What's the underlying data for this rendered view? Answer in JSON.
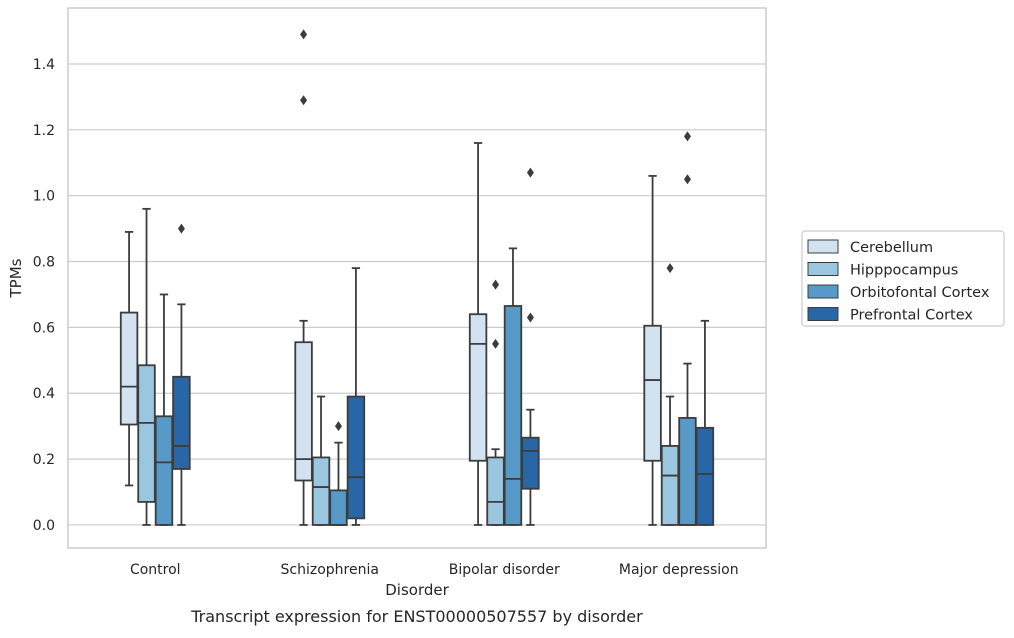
{
  "caption": "Transcript expression for ENST00000507557 by disorder",
  "chart_data": {
    "type": "box",
    "xlabel": "Disorder",
    "ylabel": "TPMs",
    "ylim": [
      -0.07,
      1.57
    ],
    "yticks": [
      0.0,
      0.2,
      0.4,
      0.6,
      0.8,
      1.0,
      1.2,
      1.4
    ],
    "ytick_labels": [
      "0.0",
      "0.2",
      "0.4",
      "0.6",
      "0.8",
      "1.0",
      "1.2",
      "1.4"
    ],
    "grid": "horizontal",
    "legend_position": "right",
    "categories": [
      "Control",
      "Schizophrenia",
      "Bipolar disorder",
      "Major depression"
    ],
    "series": [
      {
        "name": "Cerebellum",
        "color": "#d2e2f1",
        "boxes": [
          {
            "whisker_low": 0.12,
            "q1": 0.305,
            "median": 0.42,
            "q3": 0.645,
            "whisker_high": 0.89,
            "outliers": []
          },
          {
            "whisker_low": 0.0,
            "q1": 0.135,
            "median": 0.2,
            "q3": 0.555,
            "whisker_high": 0.62,
            "outliers": [
              1.29,
              1.49
            ]
          },
          {
            "whisker_low": 0.0,
            "q1": 0.195,
            "median": 0.55,
            "q3": 0.64,
            "whisker_high": 1.16,
            "outliers": []
          },
          {
            "whisker_low": 0.0,
            "q1": 0.195,
            "median": 0.44,
            "q3": 0.605,
            "whisker_high": 1.06,
            "outliers": []
          }
        ]
      },
      {
        "name": "Hipppocampus",
        "color": "#9ac6df",
        "boxes": [
          {
            "whisker_low": 0.0,
            "q1": 0.07,
            "median": 0.31,
            "q3": 0.485,
            "whisker_high": 0.96,
            "outliers": []
          },
          {
            "whisker_low": 0.0,
            "q1": 0.0,
            "median": 0.115,
            "q3": 0.205,
            "whisker_high": 0.39,
            "outliers": []
          },
          {
            "whisker_low": 0.0,
            "q1": 0.0,
            "median": 0.07,
            "q3": 0.205,
            "whisker_high": 0.23,
            "outliers": [
              0.55,
              0.73
            ]
          },
          {
            "whisker_low": 0.0,
            "q1": 0.0,
            "median": 0.15,
            "q3": 0.24,
            "whisker_high": 0.39,
            "outliers": [
              0.78
            ]
          }
        ]
      },
      {
        "name": "Orbitofontal Cortex",
        "color": "#5799c7",
        "boxes": [
          {
            "whisker_low": 0.0,
            "q1": 0.0,
            "median": 0.19,
            "q3": 0.33,
            "whisker_high": 0.7,
            "outliers": []
          },
          {
            "whisker_low": 0.0,
            "q1": 0.0,
            "median": 0.0,
            "q3": 0.105,
            "whisker_high": 0.25,
            "outliers": [
              0.3
            ]
          },
          {
            "whisker_low": 0.0,
            "q1": 0.0,
            "median": 0.14,
            "q3": 0.665,
            "whisker_high": 0.84,
            "outliers": []
          },
          {
            "whisker_low": 0.0,
            "q1": 0.0,
            "median": 0.0,
            "q3": 0.325,
            "whisker_high": 0.49,
            "outliers": [
              1.05,
              1.18
            ]
          }
        ]
      },
      {
        "name": "Prefrontal Cortex",
        "color": "#2866a5",
        "boxes": [
          {
            "whisker_low": 0.0,
            "q1": 0.17,
            "median": 0.24,
            "q3": 0.45,
            "whisker_high": 0.67,
            "outliers": [
              0.9
            ]
          },
          {
            "whisker_low": 0.0,
            "q1": 0.02,
            "median": 0.145,
            "q3": 0.39,
            "whisker_high": 0.78,
            "outliers": []
          },
          {
            "whisker_low": 0.0,
            "q1": 0.11,
            "median": 0.225,
            "q3": 0.265,
            "whisker_high": 0.35,
            "outliers": [
              0.63,
              1.07
            ]
          },
          {
            "whisker_low": 0.0,
            "q1": 0.0,
            "median": 0.155,
            "q3": 0.295,
            "whisker_high": 0.62,
            "outliers": []
          }
        ]
      }
    ]
  }
}
